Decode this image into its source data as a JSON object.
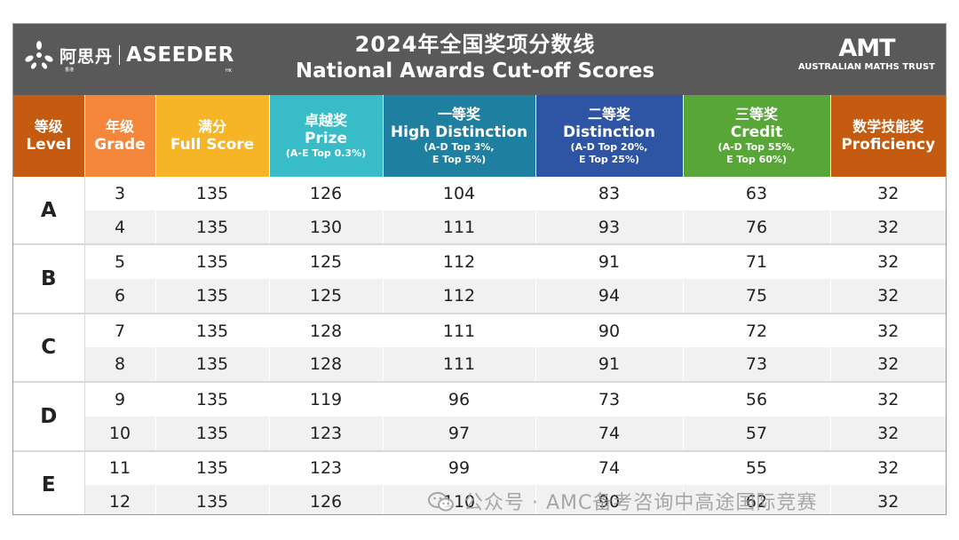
{
  "header": {
    "title_cn": "2024年全国奖项分数线",
    "title_en": "National Awards Cut-off Scores",
    "brand_cn": "阿思丹",
    "brand_en": "ASEEDER",
    "brand_sub_cn": "香港",
    "brand_sub_en": "HK",
    "amt_big": "AMT",
    "amt_small": "AUSTRALIAN MATHS TRUST"
  },
  "columns": [
    {
      "cn": "等级",
      "en": "Level",
      "note": "",
      "color": "#c55a11"
    },
    {
      "cn": "年级",
      "en": "Grade",
      "note": "",
      "color": "#f4873b"
    },
    {
      "cn": "满分",
      "en": "Full Score",
      "note": "",
      "color": "#f6b526"
    },
    {
      "cn": "卓越奖",
      "en": "Prize",
      "note": "(A-E Top 0.3%)",
      "color": "#38bcc8"
    },
    {
      "cn": "一等奖",
      "en": "High Distinction",
      "note": "(A-D Top 3%,\nE Top 5%)",
      "color": "#1f7fa0"
    },
    {
      "cn": "二等奖",
      "en": "Distinction",
      "note": "(A-D Top 20%,\nE Top 25%)",
      "color": "#2e55a4"
    },
    {
      "cn": "三等奖",
      "en": "Credit",
      "note": "(A-D Top 55%,\nE Top 60%)",
      "color": "#57a637"
    },
    {
      "cn": "数学技能奖",
      "en": "Proficiency",
      "note": "",
      "color": "#c55a11"
    }
  ],
  "groups": [
    {
      "level": "A",
      "rows": [
        {
          "grade": "3",
          "full": "135",
          "prize": "126",
          "hd": "104",
          "dist": "83",
          "credit": "63",
          "prof": "32"
        },
        {
          "grade": "4",
          "full": "135",
          "prize": "130",
          "hd": "111",
          "dist": "93",
          "credit": "76",
          "prof": "32"
        }
      ]
    },
    {
      "level": "B",
      "rows": [
        {
          "grade": "5",
          "full": "135",
          "prize": "125",
          "hd": "112",
          "dist": "91",
          "credit": "71",
          "prof": "32"
        },
        {
          "grade": "6",
          "full": "135",
          "prize": "125",
          "hd": "112",
          "dist": "94",
          "credit": "75",
          "prof": "32"
        }
      ]
    },
    {
      "level": "C",
      "rows": [
        {
          "grade": "7",
          "full": "135",
          "prize": "128",
          "hd": "111",
          "dist": "90",
          "credit": "72",
          "prof": "32"
        },
        {
          "grade": "8",
          "full": "135",
          "prize": "128",
          "hd": "111",
          "dist": "91",
          "credit": "73",
          "prof": "32"
        }
      ]
    },
    {
      "level": "D",
      "rows": [
        {
          "grade": "9",
          "full": "135",
          "prize": "119",
          "hd": "96",
          "dist": "73",
          "credit": "56",
          "prof": "32"
        },
        {
          "grade": "10",
          "full": "135",
          "prize": "123",
          "hd": "97",
          "dist": "74",
          "credit": "57",
          "prof": "32"
        }
      ]
    },
    {
      "level": "E",
      "rows": [
        {
          "grade": "11",
          "full": "135",
          "prize": "123",
          "hd": "99",
          "dist": "74",
          "credit": "55",
          "prof": "32"
        },
        {
          "grade": "12",
          "full": "135",
          "prize": "126",
          "hd": "110",
          "dist": "90",
          "credit": "62",
          "prof": "32"
        }
      ]
    }
  ],
  "watermark": {
    "text": "公众号 · AMC备考咨询中高途国际竞赛"
  }
}
